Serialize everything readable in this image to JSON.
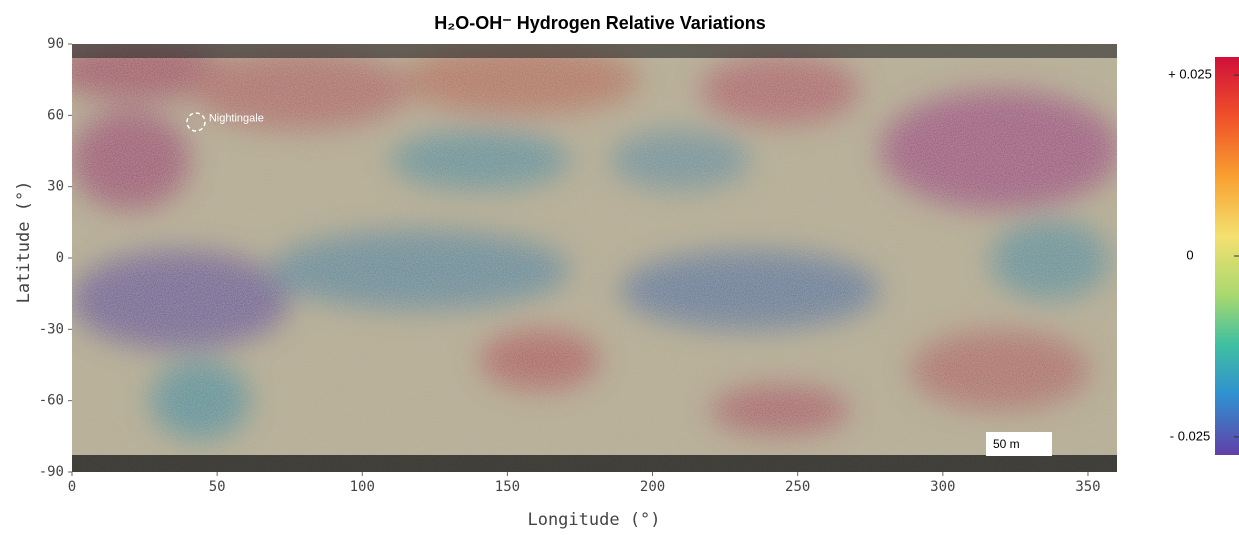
{
  "chart_data": {
    "type": "map",
    "title": "H₂O-OH⁻ Hydrogen Relative Variations",
    "xlabel": "Longitude (°)",
    "ylabel": "Latitude (°)",
    "xlim": [
      0,
      360
    ],
    "ylim": [
      -90,
      90
    ],
    "xticks": [
      0,
      50,
      100,
      150,
      200,
      250,
      300,
      350
    ],
    "yticks": [
      -90,
      -60,
      -30,
      0,
      30,
      60,
      90
    ],
    "colorbar": {
      "lim": [
        -0.0275,
        0.0275
      ],
      "ticks": [
        {
          "value": 0.025,
          "label": "+ 0.025"
        },
        0,
        {
          "value": -0.025,
          "label": "- 0.025"
        }
      ]
    },
    "annotations": [
      {
        "text": "Nightingale",
        "x": 43,
        "y": 57
      }
    ],
    "scale_bar": "50 m"
  }
}
